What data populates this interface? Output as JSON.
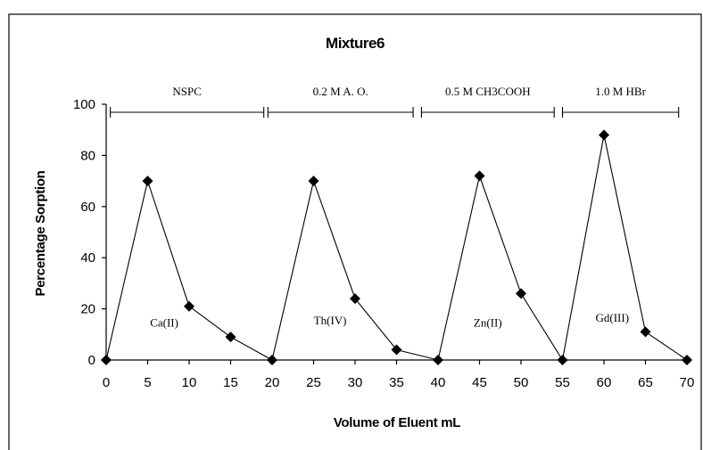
{
  "chart_data": {
    "type": "line",
    "title": "Mixture6",
    "xlabel": "Volume of Eluent mL",
    "ylabel": "Percentage Sorption",
    "xlim": [
      0,
      70
    ],
    "ylim": [
      0,
      100
    ],
    "x_ticks": [
      0,
      5,
      10,
      15,
      20,
      25,
      30,
      35,
      40,
      45,
      50,
      55,
      60,
      65,
      70
    ],
    "y_ticks": [
      0,
      20,
      40,
      60,
      80,
      100
    ],
    "grid": false,
    "legend": false,
    "series": [
      {
        "x": [
          0,
          5,
          10,
          15,
          20,
          25,
          30,
          35,
          40,
          45,
          50,
          55,
          60,
          65,
          70
        ],
        "y": [
          0,
          70,
          21,
          9,
          0,
          70,
          24,
          4,
          0,
          72,
          26,
          0,
          88,
          11,
          0
        ],
        "marker": "diamond",
        "color": "#000000"
      }
    ],
    "eluents": [
      {
        "label": "NSPC",
        "x_start": 0.5,
        "x_end": 19
      },
      {
        "label": "0.2 M A. O.",
        "x_start": 19.5,
        "x_end": 37
      },
      {
        "label": "0.5 M CH3COOH",
        "x_start": 38,
        "x_end": 54
      },
      {
        "label": "1.0 M HBr",
        "x_start": 55,
        "x_end": 69
      }
    ],
    "annotations": [
      {
        "text": "Ca(II)",
        "x": 7,
        "y": 13
      },
      {
        "text": "Th(IV)",
        "x": 27,
        "y": 14
      },
      {
        "text": "Zn(II)",
        "x": 46,
        "y": 13
      },
      {
        "text": "Gd(III)",
        "x": 61,
        "y": 15
      }
    ]
  }
}
